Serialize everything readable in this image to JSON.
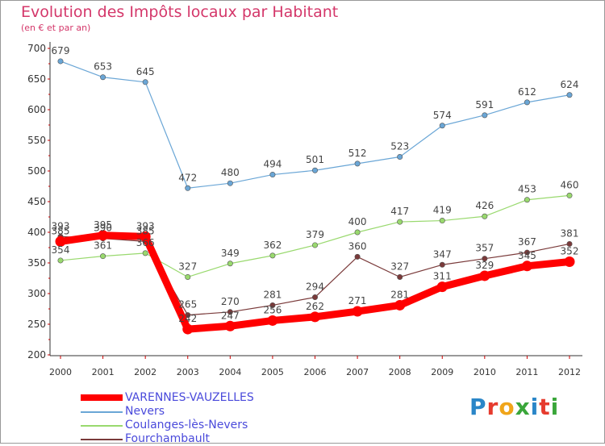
{
  "title": "Evolution des Impôts locaux par Habitant",
  "subtitle": "(en € et par an)",
  "logo": {
    "letters": [
      "P",
      "r",
      "o",
      "x",
      "i",
      "t",
      "i"
    ],
    "colors": [
      "#2a86c8",
      "#e63b2e",
      "#f0a51a",
      "#3aa63a",
      "#2a86c8",
      "#e63b2e",
      "#3aa63a"
    ]
  },
  "chart_data": {
    "type": "line",
    "title": "Evolution des Impôts locaux par Habitant",
    "subtitle": "(en € et par an)",
    "x": [
      "2000",
      "2001",
      "2002",
      "2003",
      "2004",
      "2005",
      "2006",
      "2007",
      "2008",
      "2009",
      "2010",
      "2011",
      "2012"
    ],
    "ylim": [
      200,
      700
    ],
    "yticks": [
      "200",
      "250",
      "300",
      "350",
      "400",
      "450",
      "500",
      "550",
      "600",
      "650",
      "700"
    ],
    "grid": false,
    "legend_position": "bottom-left",
    "series": [
      {
        "name": "VARENNES-VAUZELLES",
        "color": "#ff0000",
        "values": [
          385,
          395,
          393,
          242,
          247,
          256,
          262,
          271,
          281,
          311,
          329,
          345,
          352
        ],
        "labels": [
          "385",
          "395",
          "393",
          "242",
          "247",
          "256",
          "262",
          "271",
          "281",
          "311",
          "329",
          "345",
          "352"
        ],
        "thick": true
      },
      {
        "name": "Nevers",
        "color": "#6aa6d6",
        "values": [
          679,
          653,
          645,
          472,
          480,
          494,
          501,
          512,
          523,
          574,
          591,
          612,
          624
        ],
        "labels": [
          "679",
          "653",
          "645",
          "472",
          "480",
          "494",
          "501",
          "512",
          "523",
          "574",
          "591",
          "612",
          "624"
        ],
        "thick": false
      },
      {
        "name": "Coulanges-lès-Nevers",
        "color": "#99d96e",
        "values": [
          354,
          361,
          366,
          327,
          349,
          362,
          379,
          400,
          417,
          419,
          426,
          453,
          460
        ],
        "labels": [
          "354",
          "361",
          "366",
          "327",
          "349",
          "362",
          "379",
          "400",
          "417",
          "419",
          "426",
          "453",
          "460"
        ],
        "thick": false
      },
      {
        "name": "Fourchambault",
        "color": "#7a3a3a",
        "values": [
          393,
          390,
          385,
          265,
          270,
          281,
          294,
          360,
          327,
          347,
          357,
          367,
          381
        ],
        "labels": [
          "393",
          "390",
          "385",
          "265",
          "270",
          "281",
          "294",
          "360",
          "327",
          "347",
          "357",
          "367",
          "381"
        ],
        "thick": false
      }
    ]
  }
}
